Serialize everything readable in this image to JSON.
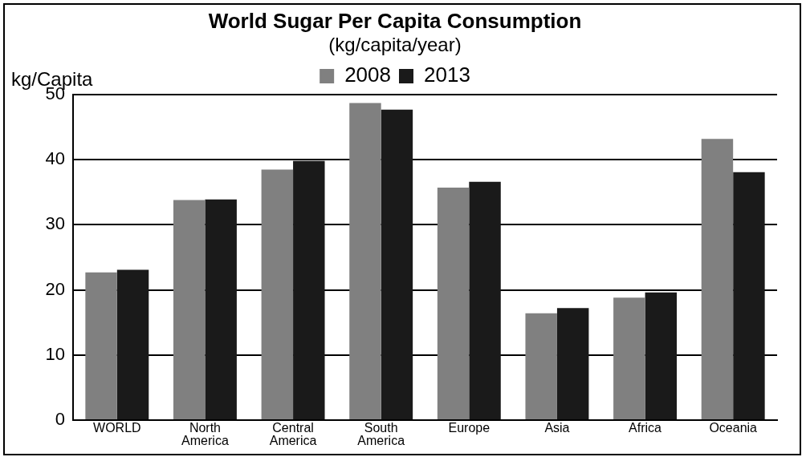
{
  "chart_data": {
    "type": "bar",
    "title": "World Sugar Per Capita Consumption",
    "subtitle": "(kg/capita/year)",
    "ylabel": "kg/Capita",
    "categories": [
      "WORLD",
      "North America",
      "Central America",
      "South America",
      "Europe",
      "Asia",
      "Africa",
      "Oceania"
    ],
    "series": [
      {
        "name": "2008",
        "color": "#808080",
        "values": [
          22.7,
          33.8,
          38.5,
          48.7,
          35.7,
          16.4,
          18.8,
          43.2
        ]
      },
      {
        "name": "2013",
        "color": "#1a1a1a",
        "values": [
          23.1,
          33.9,
          39.8,
          47.7,
          36.6,
          17.2,
          19.6,
          38.1
        ]
      }
    ],
    "ylim": [
      0,
      50
    ],
    "yticks": [
      0,
      10,
      20,
      30,
      40,
      50
    ],
    "grid": "y",
    "legend": "top"
  }
}
